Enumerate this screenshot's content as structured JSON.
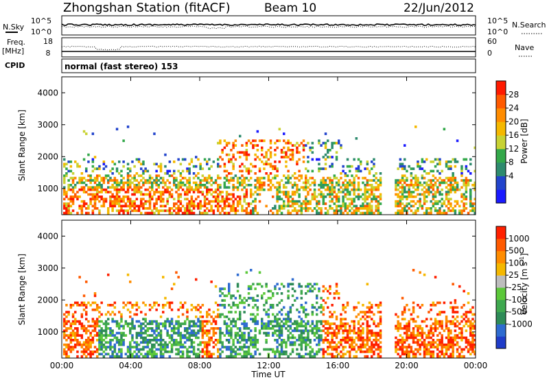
{
  "header": {
    "title": "Zhongshan Station (fitACF)",
    "beam": "Beam 10",
    "date": "22/Jun/2012"
  },
  "status_panels": {
    "noise": {
      "left_label": "N.Sky",
      "left_ticks": [
        "10^5",
        "10^0"
      ],
      "right_label": "N.Search",
      "right_ticks": [
        "10^5",
        "10^0"
      ]
    },
    "freq": {
      "left_label_line1": "Freq.",
      "left_label_line2": "[MHz]",
      "left_ticks": [
        "18",
        "8"
      ],
      "right_label": "Nave",
      "right_ticks": [
        "60",
        "0"
      ]
    },
    "cpid": {
      "label": "CPID",
      "text": "normal (fast stereo) 153"
    }
  },
  "chart_data": [
    {
      "type": "heatmap",
      "name": "power",
      "ylabel": "Slant Range [km]",
      "xlabel": "Time UT",
      "ylim": [
        180,
        4500
      ],
      "xlim": [
        0,
        24
      ],
      "yticks": [
        "1000",
        "2000",
        "3000",
        "4000"
      ],
      "xticks": [
        "00:00",
        "04:00",
        "08:00",
        "12:00",
        "16:00",
        "20:00",
        "00:00"
      ],
      "colorbar": {
        "label": "Power [dB]",
        "ticks": [
          "4",
          "8",
          "12",
          "16",
          "20",
          "24",
          "28"
        ],
        "colors": [
          "#1a1aff",
          "#2244cc",
          "#2e8b6e",
          "#33a84a",
          "#c8d233",
          "#f5b800",
          "#ff8c00",
          "#ff5a00",
          "#ff1a00"
        ]
      }
    },
    {
      "type": "heatmap",
      "name": "velocity",
      "ylabel": "Slant Range [km]",
      "xlabel": "Time UT",
      "ylim": [
        180,
        4500
      ],
      "xlim": [
        0,
        24
      ],
      "yticks": [
        "1000",
        "2000",
        "3000",
        "4000"
      ],
      "xticks": [
        "00:00",
        "04:00",
        "08:00",
        "12:00",
        "16:00",
        "20:00",
        "00:00"
      ],
      "colorbar": {
        "label": "Velocity [m s",
        "label_exp": "-1",
        "label_close": "]",
        "ticks": [
          "1000",
          "500",
          "100",
          "25",
          "-25",
          "-100",
          "-500",
          "-1000"
        ],
        "colors": [
          "#1f3cc8",
          "#2e6bd0",
          "#2e8b57",
          "#3fa84f",
          "#5cc83a",
          "#bdbdbd",
          "#f5b800",
          "#ff8c00",
          "#ff5a00",
          "#ff2000"
        ]
      }
    }
  ]
}
